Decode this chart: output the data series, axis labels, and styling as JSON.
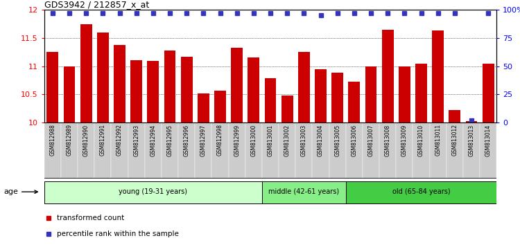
{
  "title": "GDS3942 / 212857_x_at",
  "samples": [
    "GSM812988",
    "GSM812989",
    "GSM812990",
    "GSM812991",
    "GSM812992",
    "GSM812993",
    "GSM812994",
    "GSM812995",
    "GSM812996",
    "GSM812997",
    "GSM812998",
    "GSM812999",
    "GSM813000",
    "GSM813001",
    "GSM813002",
    "GSM813003",
    "GSM813004",
    "GSM813005",
    "GSM813006",
    "GSM813007",
    "GSM813008",
    "GSM813009",
    "GSM813010",
    "GSM813011",
    "GSM813012",
    "GSM813013",
    "GSM813014"
  ],
  "bar_values": [
    11.25,
    11.0,
    11.75,
    11.6,
    11.37,
    11.1,
    11.09,
    11.28,
    11.17,
    10.52,
    10.57,
    11.33,
    11.15,
    10.78,
    10.48,
    11.25,
    10.95,
    10.88,
    10.73,
    11.0,
    11.65,
    11.0,
    11.05,
    11.63,
    10.22,
    10.03,
    11.05
  ],
  "percentile_values": [
    97,
    97,
    97,
    97,
    97,
    97,
    97,
    97,
    97,
    97,
    97,
    97,
    97,
    97,
    97,
    97,
    95,
    97,
    97,
    97,
    97,
    97,
    97,
    97,
    97,
    2,
    97
  ],
  "bar_color": "#cc0000",
  "percentile_color": "#3333bb",
  "ylim_left": [
    10,
    12
  ],
  "ylim_right": [
    0,
    100
  ],
  "yticks_left": [
    10,
    10.5,
    11,
    11.5,
    12
  ],
  "ytick_labels_left": [
    "10",
    "10.5",
    "11",
    "11.5",
    "12"
  ],
  "yticks_right": [
    0,
    25,
    50,
    75,
    100
  ],
  "ytick_labels_right": [
    "0",
    "25",
    "50",
    "75",
    "100%"
  ],
  "groups": [
    {
      "label": "young (19-31 years)",
      "start": 0,
      "end": 13,
      "color": "#ccffcc"
    },
    {
      "label": "middle (42-61 years)",
      "start": 13,
      "end": 18,
      "color": "#88ee88"
    },
    {
      "label": "old (65-84 years)",
      "start": 18,
      "end": 27,
      "color": "#44cc44"
    }
  ],
  "age_label": "age",
  "legend_items": [
    {
      "label": "transformed count",
      "color": "#cc0000"
    },
    {
      "label": "percentile rank within the sample",
      "color": "#3333bb"
    }
  ],
  "xtick_bg": "#cccccc"
}
